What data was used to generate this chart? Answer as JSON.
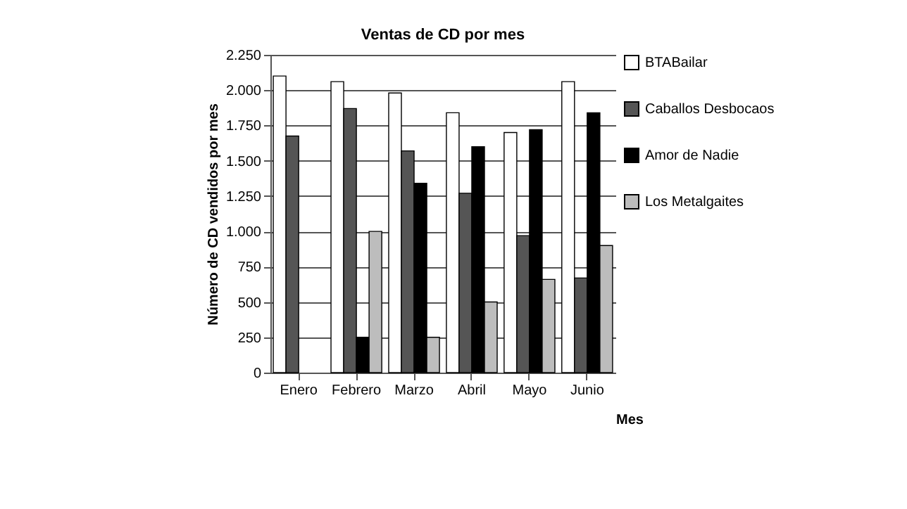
{
  "chart_data": {
    "type": "bar",
    "title": "Ventas de CD por mes",
    "xlabel": "Mes",
    "ylabel": "Número de CD vendidos por mes",
    "categories": [
      "Enero",
      "Febrero",
      "Marzo",
      "Abril",
      "Mayo",
      "Junio"
    ],
    "series": [
      {
        "name": "BTABailar",
        "color": "#ffffff",
        "values": [
          2100,
          2060,
          1980,
          1840,
          1700,
          2060
        ]
      },
      {
        "name": "Caballos Desbocaos",
        "color": "#555555",
        "values": [
          1675,
          1870,
          1570,
          1270,
          970,
          670
        ]
      },
      {
        "name": "Amor de Nadie",
        "color": "#000000",
        "values": [
          null,
          250,
          1340,
          1600,
          1720,
          1840
        ]
      },
      {
        "name": "Los Metalgaites",
        "color": "#bdbdbd",
        "values": [
          null,
          1000,
          250,
          500,
          660,
          900
        ]
      }
    ],
    "ylim": [
      0,
      2250
    ],
    "yticks": [
      0,
      250,
      500,
      750,
      {
        "value": 1000,
        "label": "1.000"
      },
      {
        "value": 1250,
        "label": "1.250"
      },
      {
        "value": 1500,
        "label": "1.500"
      },
      {
        "value": 1750,
        "label": "1.750"
      },
      {
        "value": 2000,
        "label": "2.000"
      },
      {
        "value": 2250,
        "label": "2.250"
      }
    ],
    "grid": "y",
    "legend": "right"
  }
}
